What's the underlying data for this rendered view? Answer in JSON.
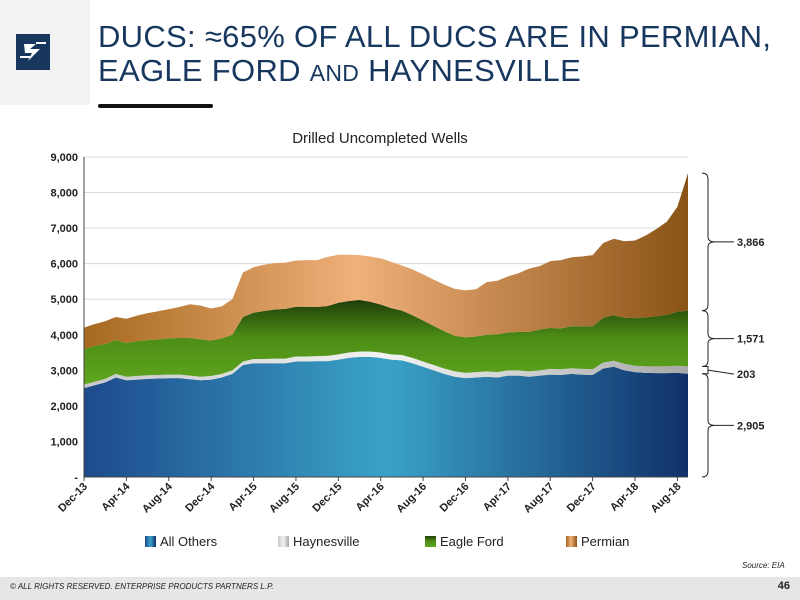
{
  "slide": {
    "title_line1": "DUCS:  ≈65% OF ALL DUCS ARE IN PERMIAN,",
    "title_line2_a": "EAGLE FORD ",
    "title_line2_b": "AND",
    "title_line2_c": " HAYNESVILLE",
    "source": "Source: EIA",
    "footer": "© ALL RIGHTS RESERVED. ENTERPRISE PRODUCTS PARTNERS L.P.",
    "page_number": "46"
  },
  "chart_data": {
    "type": "area",
    "stacked": true,
    "title": "Drilled Uncompleted Wells",
    "ylim": [
      0,
      9000
    ],
    "yticks": [
      0,
      1000,
      2000,
      3000,
      4000,
      5000,
      6000,
      7000,
      8000,
      9000
    ],
    "ytick_labels": [
      "-",
      "1,000",
      "2,000",
      "3,000",
      "4,000",
      "5,000",
      "6,000",
      "7,000",
      "8,000",
      "9,000"
    ],
    "xtick_labels": [
      "Dec-13",
      "Apr-14",
      "Aug-14",
      "Dec-14",
      "Apr-15",
      "Aug-15",
      "Dec-15",
      "Apr-16",
      "Aug-16",
      "Dec-16",
      "Apr-17",
      "Aug-17",
      "Dec-17",
      "Apr-18",
      "Aug-18"
    ],
    "x": [
      "Dec-13",
      "Jan-14",
      "Feb-14",
      "Mar-14",
      "Apr-14",
      "May-14",
      "Jun-14",
      "Jul-14",
      "Aug-14",
      "Sep-14",
      "Oct-14",
      "Nov-14",
      "Dec-14",
      "Jan-15",
      "Feb-15",
      "Mar-15",
      "Apr-15",
      "May-15",
      "Jun-15",
      "Jul-15",
      "Aug-15",
      "Sep-15",
      "Oct-15",
      "Nov-15",
      "Dec-15",
      "Jan-16",
      "Feb-16",
      "Mar-16",
      "Apr-16",
      "May-16",
      "Jun-16",
      "Jul-16",
      "Aug-16",
      "Sep-16",
      "Oct-16",
      "Nov-16",
      "Dec-16",
      "Jan-17",
      "Feb-17",
      "Mar-17",
      "Apr-17",
      "May-17",
      "Jun-17",
      "Jul-17",
      "Aug-17",
      "Sep-17",
      "Oct-17",
      "Nov-17",
      "Dec-17",
      "Jan-18",
      "Feb-18",
      "Mar-18",
      "Apr-18",
      "May-18",
      "Jun-18",
      "Jul-18",
      "Aug-18",
      "Sep-18"
    ],
    "legend_position": "bottom",
    "series": [
      {
        "name": "All Others",
        "color": "#1f6fa8",
        "values": [
          2500,
          2580,
          2660,
          2800,
          2720,
          2740,
          2760,
          2770,
          2780,
          2780,
          2750,
          2720,
          2740,
          2800,
          2900,
          3150,
          3200,
          3200,
          3200,
          3200,
          3250,
          3250,
          3260,
          3260,
          3300,
          3350,
          3380,
          3380,
          3350,
          3300,
          3280,
          3200,
          3100,
          3000,
          2900,
          2820,
          2780,
          2800,
          2820,
          2800,
          2850,
          2850,
          2820,
          2850,
          2880,
          2870,
          2900,
          2880,
          2870,
          3050,
          3100,
          3000,
          2950,
          2930,
          2920,
          2920,
          2930,
          2905
        ]
      },
      {
        "name": "Haynesville",
        "color": "#d0d0d0",
        "values": [
          100,
          100,
          100,
          100,
          100,
          100,
          100,
          100,
          100,
          100,
          100,
          100,
          100,
          100,
          100,
          100,
          120,
          120,
          130,
          130,
          140,
          140,
          140,
          150,
          150,
          150,
          150,
          150,
          150,
          150,
          150,
          150,
          150,
          150,
          150,
          150,
          150,
          150,
          150,
          150,
          150,
          150,
          150,
          150,
          160,
          160,
          160,
          160,
          160,
          170,
          170,
          180,
          180,
          180,
          190,
          190,
          200,
          203
        ]
      },
      {
        "name": "Eagle Ford",
        "color": "#4e8a14",
        "values": [
          1000,
          1000,
          980,
          950,
          950,
          980,
          990,
          1000,
          1020,
          1030,
          1060,
          1050,
          1000,
          1000,
          1000,
          1250,
          1300,
          1350,
          1380,
          1400,
          1400,
          1400,
          1380,
          1400,
          1450,
          1450,
          1450,
          1400,
          1350,
          1300,
          1250,
          1200,
          1150,
          1100,
          1050,
          1000,
          1000,
          1000,
          1030,
          1060,
          1060,
          1080,
          1110,
          1150,
          1150,
          1150,
          1180,
          1200,
          1210,
          1260,
          1280,
          1300,
          1340,
          1380,
          1410,
          1450,
          1520,
          1571
        ]
      },
      {
        "name": "Permian",
        "color": "#c8894a",
        "values": [
          600,
          620,
          640,
          650,
          680,
          720,
          760,
          790,
          820,
          870,
          950,
          950,
          900,
          900,
          1000,
          1250,
          1280,
          1300,
          1310,
          1300,
          1300,
          1310,
          1320,
          1380,
          1350,
          1300,
          1260,
          1270,
          1300,
          1300,
          1270,
          1290,
          1300,
          1300,
          1310,
          1320,
          1320,
          1330,
          1480,
          1510,
          1580,
          1650,
          1780,
          1780,
          1880,
          1920,
          1940,
          1960,
          2000,
          2100,
          2150,
          2150,
          2180,
          2300,
          2450,
          2620,
          2950,
          3866
        ]
      }
    ],
    "annotations": [
      {
        "label": "3,866",
        "series": "Permian"
      },
      {
        "label": "1,571",
        "series": "Eagle Ford"
      },
      {
        "label": "203",
        "series": "Haynesville"
      },
      {
        "label": "2,905",
        "series": "All Others"
      }
    ]
  }
}
